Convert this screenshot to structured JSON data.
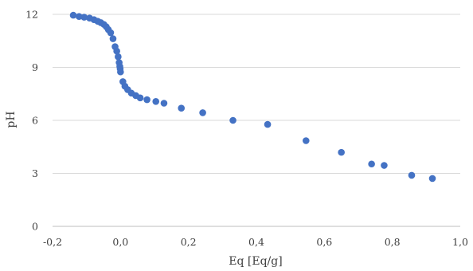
{
  "chart_data": {
    "type": "scatter",
    "title": "",
    "xlabel": "Eq [Eq/g]",
    "ylabel": "pH",
    "xlim": [
      -0.2,
      1.0
    ],
    "ylim": [
      0,
      12
    ],
    "xticks": [
      -0.2,
      0.0,
      0.2,
      0.4,
      0.6,
      0.8,
      1.0
    ],
    "xtick_labels": [
      "-0,2",
      "0,0",
      "0,2",
      "0,4",
      "0,6",
      "0,8",
      "1,0"
    ],
    "yticks": [
      0,
      3,
      6,
      9,
      12
    ],
    "ytick_labels": [
      "0",
      "3",
      "6",
      "9",
      "12"
    ],
    "grid": "horizontal",
    "legend": "none",
    "marker_color": "#4472C4",
    "series": [
      {
        "name": "",
        "points": [
          [
            -0.139,
            11.95
          ],
          [
            -0.122,
            11.88
          ],
          [
            -0.107,
            11.84
          ],
          [
            -0.091,
            11.79
          ],
          [
            -0.078,
            11.7
          ],
          [
            -0.067,
            11.61
          ],
          [
            -0.058,
            11.53
          ],
          [
            -0.049,
            11.43
          ],
          [
            -0.042,
            11.3
          ],
          [
            -0.036,
            11.14
          ],
          [
            -0.029,
            10.96
          ],
          [
            -0.022,
            10.62
          ],
          [
            -0.016,
            10.17
          ],
          [
            -0.011,
            9.92
          ],
          [
            -0.007,
            9.6
          ],
          [
            -0.004,
            9.27
          ],
          [
            -0.002,
            9.05
          ],
          [
            -0.001,
            8.92
          ],
          [
            0.0,
            8.74
          ],
          [
            0.007,
            8.19
          ],
          [
            0.013,
            7.93
          ],
          [
            0.021,
            7.74
          ],
          [
            0.032,
            7.54
          ],
          [
            0.045,
            7.4
          ],
          [
            0.058,
            7.27
          ],
          [
            0.078,
            7.17
          ],
          [
            0.104,
            7.07
          ],
          [
            0.128,
            6.97
          ],
          [
            0.179,
            6.69
          ],
          [
            0.242,
            6.43
          ],
          [
            0.331,
            6.0
          ],
          [
            0.433,
            5.77
          ],
          [
            0.546,
            4.85
          ],
          [
            0.65,
            4.19
          ],
          [
            0.739,
            3.53
          ],
          [
            0.776,
            3.45
          ],
          [
            0.857,
            2.89
          ],
          [
            0.918,
            2.71
          ]
        ]
      }
    ]
  }
}
